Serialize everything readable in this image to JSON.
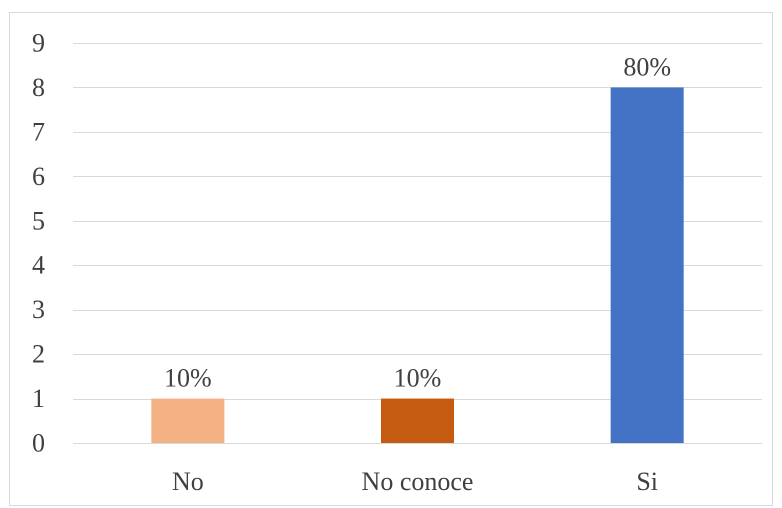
{
  "chart_data": {
    "type": "bar",
    "categories": [
      "No",
      "No conoce",
      "Si"
    ],
    "values": [
      1,
      1,
      8
    ],
    "data_labels": [
      "10%",
      "10%",
      "80%"
    ],
    "bar_colors": [
      "#F4B183",
      "#C55A11",
      "#4472C4"
    ],
    "ylim": [
      0,
      9
    ],
    "yticks": [
      0,
      1,
      2,
      3,
      4,
      5,
      6,
      7,
      8,
      9
    ],
    "grid": true,
    "legend": false,
    "title": "",
    "xlabel": "",
    "ylabel": ""
  },
  "colors": {
    "gridline": "#D9D9D9",
    "frame": "#D9D9D9",
    "text": "#404040"
  }
}
